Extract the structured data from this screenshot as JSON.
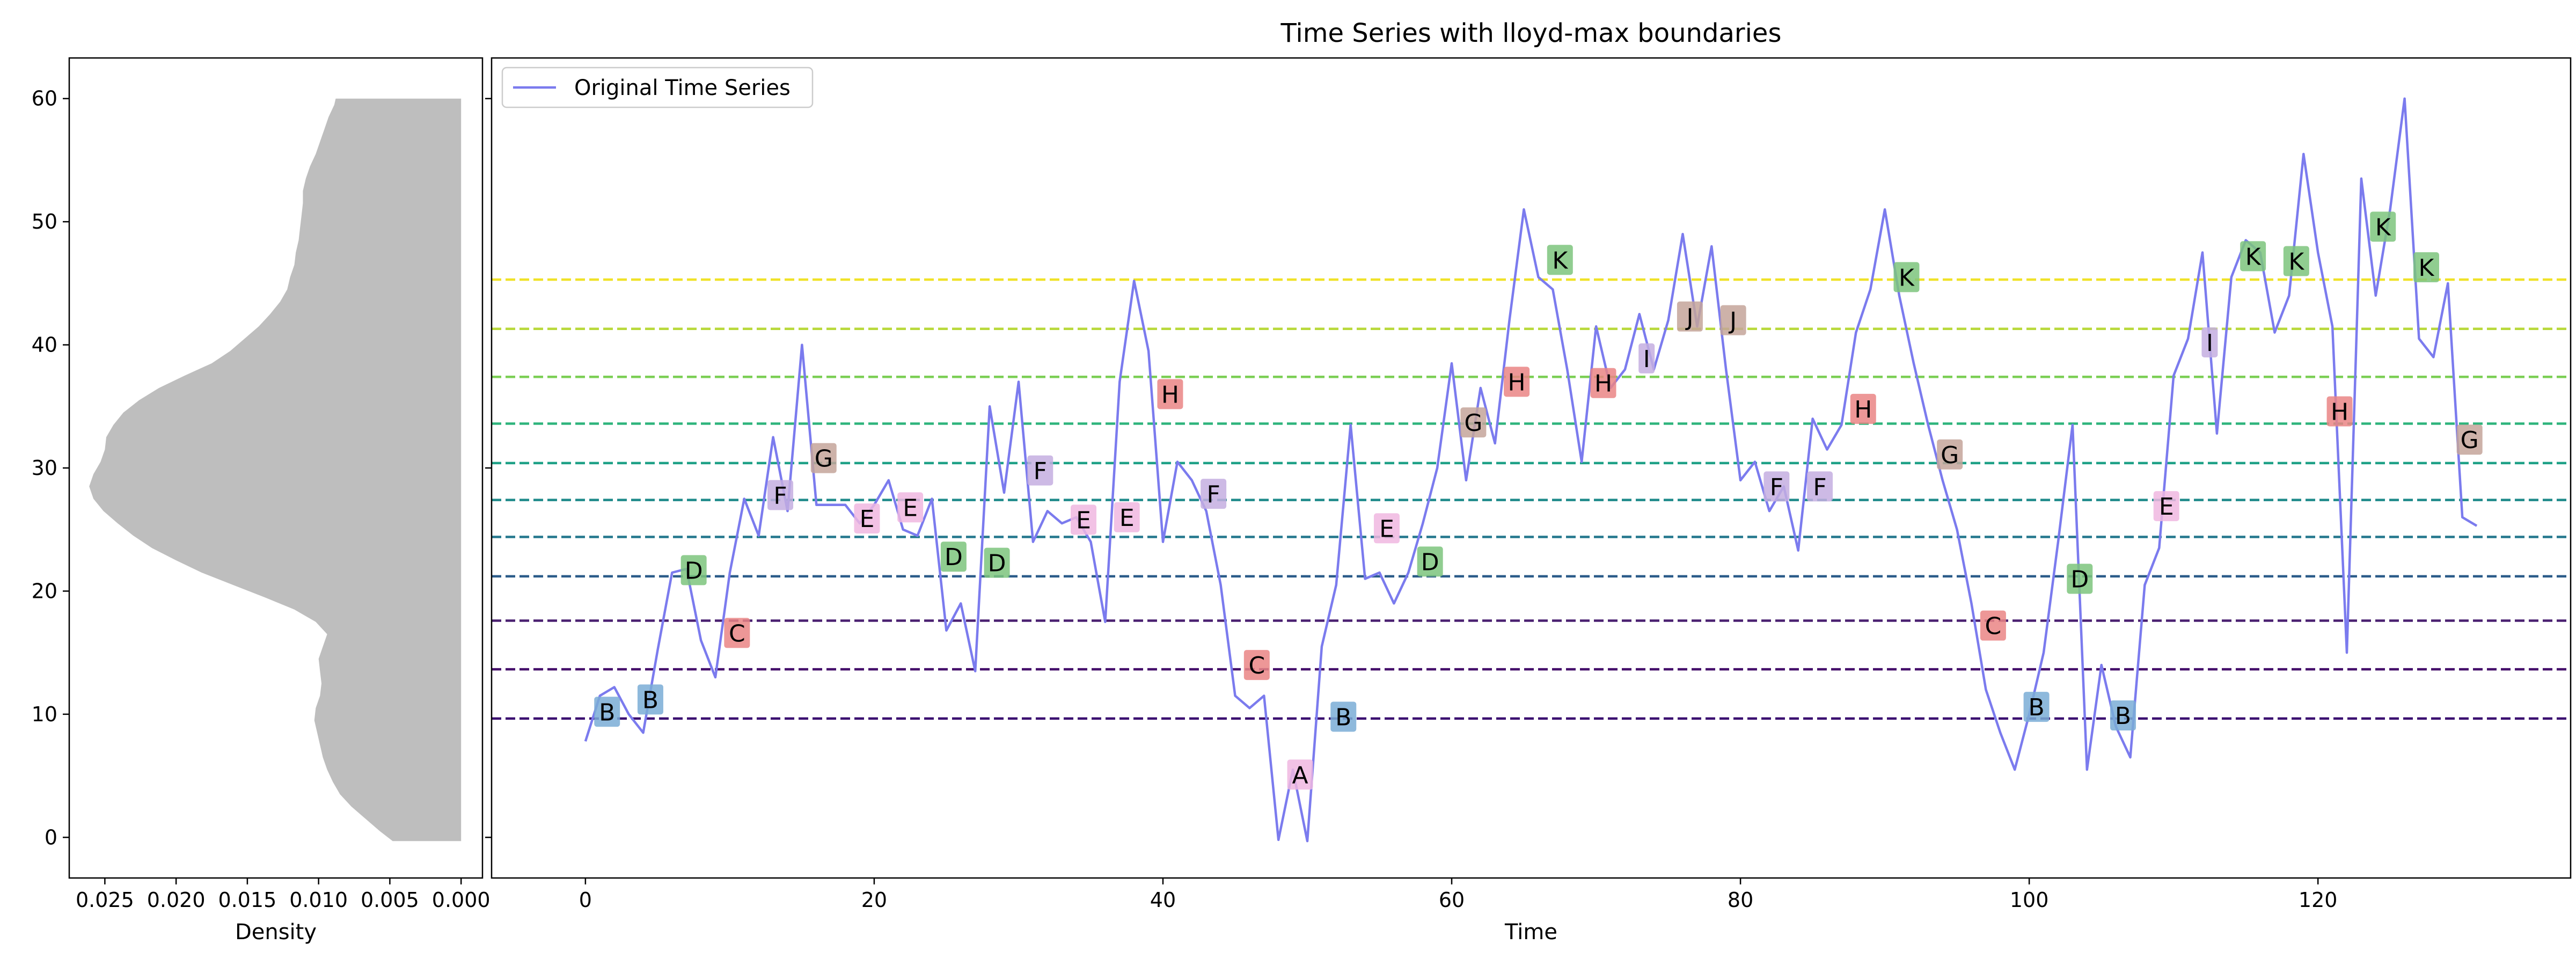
{
  "chart_data": [
    {
      "type": "area",
      "xlabel": "Density",
      "x_ticks": [
        "0.025",
        "0.020",
        "0.015",
        "0.010",
        "0.005",
        "0.000"
      ],
      "x_tick_values": [
        0.025,
        0.02,
        0.015,
        0.01,
        0.005,
        0.0
      ],
      "xlim": [
        0.0275,
        -0.0015
      ],
      "x_inverted": true,
      "y_ticks": [
        "0",
        "10",
        "20",
        "30",
        "40",
        "50",
        "60"
      ],
      "y_tick_values": [
        0,
        10,
        20,
        30,
        40,
        50,
        60
      ],
      "ylim": [
        -3.3,
        63.3
      ],
      "fill_color": "#bebebe",
      "density_profile": {
        "y": [
          -0.3,
          0.5,
          1.5,
          2.5,
          3.5,
          4.5,
          5.5,
          6.5,
          7.5,
          8.5,
          9.5,
          10.5,
          11.5,
          12.5,
          13.5,
          14.5,
          15.5,
          16.5,
          17.5,
          18.5,
          19.5,
          20.5,
          21.5,
          22.5,
          23.5,
          24.5,
          25.5,
          26.5,
          27.5,
          28.5,
          29.5,
          30.5,
          31.5,
          32.5,
          33.5,
          34.5,
          35.5,
          36.5,
          37.5,
          38.5,
          39.5,
          40.5,
          41.5,
          42.5,
          43.5,
          44.5,
          45.5,
          46.5,
          47.5,
          48.5,
          49.5,
          50.5,
          51.5,
          52.5,
          53.5,
          54.5,
          55.5,
          56.5,
          57.5,
          58.5,
          59.5,
          60.0
        ],
        "density": [
          0.0048,
          0.0057,
          0.0067,
          0.0077,
          0.0085,
          0.009,
          0.0094,
          0.0097,
          0.0099,
          0.0101,
          0.0103,
          0.0102,
          0.0099,
          0.0098,
          0.0099,
          0.01,
          0.0097,
          0.0094,
          0.0102,
          0.0117,
          0.0138,
          0.016,
          0.0182,
          0.02,
          0.0217,
          0.023,
          0.0241,
          0.0251,
          0.0258,
          0.0261,
          0.0258,
          0.0253,
          0.025,
          0.0249,
          0.0244,
          0.0237,
          0.0226,
          0.0212,
          0.0194,
          0.0175,
          0.0162,
          0.0152,
          0.0142,
          0.0134,
          0.0127,
          0.0122,
          0.012,
          0.0117,
          0.0116,
          0.0114,
          0.0113,
          0.0112,
          0.0111,
          0.0111,
          0.0109,
          0.0106,
          0.0102,
          0.0099,
          0.0096,
          0.0093,
          0.0089,
          0.0088
        ]
      }
    },
    {
      "type": "line",
      "title": "Time Series with lloyd-max boundaries",
      "xlabel": "Time",
      "ylabel": "",
      "x_ticks": [
        "0",
        "20",
        "40",
        "60",
        "80",
        "100",
        "120"
      ],
      "x_tick_values": [
        0,
        20,
        40,
        60,
        80,
        100,
        120
      ],
      "xlim": [
        -6.5,
        137.5
      ],
      "ylim": [
        -3.3,
        63.3
      ],
      "legend": {
        "position": "top-left",
        "entries": [
          "Original Time Series"
        ]
      },
      "series": [
        {
          "name": "Original Time Series",
          "color": "#7b7bee",
          "x": [
            0,
            1,
            2,
            3,
            4,
            5,
            6,
            7,
            8,
            9,
            10,
            11,
            12,
            13,
            14,
            15,
            16,
            17,
            18,
            19,
            20,
            21,
            22,
            23,
            24,
            25,
            26,
            27,
            28,
            29,
            30,
            31,
            32,
            33,
            34,
            35,
            36,
            37,
            38,
            39,
            40,
            41,
            42,
            43,
            44,
            45,
            46,
            47,
            48,
            49,
            50,
            51,
            52,
            53,
            54,
            55,
            56,
            57,
            58,
            59,
            60,
            61,
            62,
            63,
            64,
            65,
            66,
            67,
            68,
            69,
            70,
            71,
            72,
            73,
            74,
            75,
            76,
            77,
            78,
            79,
            80,
            81,
            82,
            83,
            84,
            85,
            86,
            87,
            88,
            89,
            90,
            91,
            92,
            93,
            94,
            95,
            96,
            97,
            98,
            99,
            100,
            101,
            102,
            103,
            104,
            105,
            106,
            107,
            108,
            109,
            110,
            111,
            112,
            113,
            114,
            115,
            116,
            117,
            118,
            119,
            120,
            121,
            122,
            123,
            124,
            125,
            126,
            127,
            128,
            129,
            130,
            131
          ],
          "y": [
            7.8,
            11.5,
            12.2,
            10.0,
            8.5,
            15.2,
            21.5,
            21.8,
            16.0,
            13.0,
            21.5,
            27.5,
            24.5,
            32.5,
            26.5,
            40.0,
            27.0,
            27.0,
            27.0,
            25.5,
            27.0,
            29.0,
            25.0,
            24.5,
            27.5,
            16.8,
            19.0,
            13.5,
            35.0,
            28.0,
            37.0,
            24.0,
            26.5,
            25.5,
            26.0,
            24.0,
            17.5,
            37.0,
            45.2,
            39.5,
            24.0,
            30.5,
            29.0,
            26.5,
            20.5,
            11.5,
            10.5,
            11.5,
            -0.2,
            5.5,
            -0.3,
            15.5,
            20.5,
            33.5,
            21.0,
            21.5,
            19.0,
            21.5,
            25.5,
            30.0,
            38.5,
            29.0,
            36.5,
            32.0,
            42.0,
            51.0,
            45.5,
            44.5,
            38.0,
            30.5,
            41.5,
            36.5,
            38.0,
            42.5,
            38.0,
            42.0,
            49.0,
            41.5,
            48.0,
            38.0,
            29.0,
            30.5,
            26.5,
            28.5,
            23.3,
            34.0,
            31.5,
            33.5,
            41.0,
            44.5,
            51.0,
            44.0,
            38.5,
            33.5,
            29.0,
            25.0,
            19.0,
            12.0,
            8.5,
            5.5,
            10.0,
            15.0,
            24.0,
            33.5,
            5.5,
            14.0,
            9.0,
            6.5,
            20.5,
            23.5,
            37.5,
            40.5,
            47.5,
            32.8,
            45.5,
            48.5,
            47.5,
            41.0,
            44.0,
            55.5,
            47.5,
            41.5,
            15.0,
            53.5,
            44.0,
            51.0,
            60.0,
            40.5,
            39.0,
            45.0,
            26.0,
            25.3
          ]
        }
      ],
      "boundaries": [
        {
          "y": 9.65,
          "color": "#3b0f70"
        },
        {
          "y": 13.65,
          "color": "#45106b"
        },
        {
          "y": 17.6,
          "color": "#4a2070"
        },
        {
          "y": 21.2,
          "color": "#2c5c8a"
        },
        {
          "y": 24.4,
          "color": "#25788e"
        },
        {
          "y": 27.4,
          "color": "#1f8a8a"
        },
        {
          "y": 30.4,
          "color": "#1fa187"
        },
        {
          "y": 33.6,
          "color": "#2fb47c"
        },
        {
          "y": 37.4,
          "color": "#7ccf55"
        },
        {
          "y": 41.3,
          "color": "#b8d93a"
        },
        {
          "y": 45.3,
          "color": "#f0e228"
        }
      ],
      "annotations": [
        {
          "x": 1.5,
          "y": 10.2,
          "label": "B",
          "color": "#7aadd6"
        },
        {
          "x": 4.5,
          "y": 11.2,
          "label": "B",
          "color": "#7aadd6"
        },
        {
          "x": 7.5,
          "y": 21.7,
          "label": "D",
          "color": "#7cc47c"
        },
        {
          "x": 10.5,
          "y": 16.6,
          "label": "C",
          "color": "#ea8585"
        },
        {
          "x": 13.5,
          "y": 27.8,
          "label": "F",
          "color": "#c4aee0"
        },
        {
          "x": 16.5,
          "y": 30.8,
          "label": "G",
          "color": "#c4a49a"
        },
        {
          "x": 19.5,
          "y": 25.9,
          "label": "E",
          "color": "#f0b7e1"
        },
        {
          "x": 22.5,
          "y": 26.8,
          "label": "E",
          "color": "#f0b7e1"
        },
        {
          "x": 25.5,
          "y": 22.8,
          "label": "D",
          "color": "#7cc47c"
        },
        {
          "x": 28.5,
          "y": 22.3,
          "label": "D",
          "color": "#7cc47c"
        },
        {
          "x": 31.5,
          "y": 29.8,
          "label": "F",
          "color": "#c4aee0"
        },
        {
          "x": 34.5,
          "y": 25.8,
          "label": "E",
          "color": "#f0b7e1"
        },
        {
          "x": 37.5,
          "y": 26.0,
          "label": "E",
          "color": "#f0b7e1"
        },
        {
          "x": 40.5,
          "y": 36.0,
          "label": "H",
          "color": "#ea8585"
        },
        {
          "x": 43.5,
          "y": 27.9,
          "label": "F",
          "color": "#c4aee0"
        },
        {
          "x": 46.5,
          "y": 14.0,
          "label": "C",
          "color": "#ea8585"
        },
        {
          "x": 49.5,
          "y": 5.1,
          "label": "A",
          "color": "#f0b7e1"
        },
        {
          "x": 52.5,
          "y": 9.8,
          "label": "B",
          "color": "#7aadd6"
        },
        {
          "x": 55.5,
          "y": 25.1,
          "label": "E",
          "color": "#f0b7e1"
        },
        {
          "x": 58.5,
          "y": 22.4,
          "label": "D",
          "color": "#7cc47c"
        },
        {
          "x": 61.5,
          "y": 33.7,
          "label": "G",
          "color": "#c4a49a"
        },
        {
          "x": 64.5,
          "y": 37.0,
          "label": "H",
          "color": "#ea8585"
        },
        {
          "x": 67.5,
          "y": 46.9,
          "label": "K",
          "color": "#7cc47c"
        },
        {
          "x": 70.5,
          "y": 36.9,
          "label": "H",
          "color": "#ea8585"
        },
        {
          "x": 73.5,
          "y": 38.9,
          "label": "I",
          "color": "#c4aee0"
        },
        {
          "x": 76.5,
          "y": 42.3,
          "label": "J",
          "color": "#c4a49a"
        },
        {
          "x": 79.5,
          "y": 42.0,
          "label": "J",
          "color": "#c4a49a"
        },
        {
          "x": 82.5,
          "y": 28.5,
          "label": "F",
          "color": "#c4aee0"
        },
        {
          "x": 85.5,
          "y": 28.5,
          "label": "F",
          "color": "#c4aee0"
        },
        {
          "x": 88.5,
          "y": 34.8,
          "label": "H",
          "color": "#ea8585"
        },
        {
          "x": 91.5,
          "y": 45.5,
          "label": "K",
          "color": "#7cc47c"
        },
        {
          "x": 94.5,
          "y": 31.1,
          "label": "G",
          "color": "#c4a49a"
        },
        {
          "x": 97.5,
          "y": 17.2,
          "label": "C",
          "color": "#ea8585"
        },
        {
          "x": 100.5,
          "y": 10.6,
          "label": "B",
          "color": "#7aadd6"
        },
        {
          "x": 103.5,
          "y": 21.0,
          "label": "D",
          "color": "#7cc47c"
        },
        {
          "x": 106.5,
          "y": 9.9,
          "label": "B",
          "color": "#7aadd6"
        },
        {
          "x": 109.5,
          "y": 26.9,
          "label": "E",
          "color": "#f0b7e1"
        },
        {
          "x": 112.5,
          "y": 40.2,
          "label": "I",
          "color": "#c4aee0"
        },
        {
          "x": 115.5,
          "y": 47.2,
          "label": "K",
          "color": "#7cc47c"
        },
        {
          "x": 118.5,
          "y": 46.8,
          "label": "K",
          "color": "#7cc47c"
        },
        {
          "x": 121.5,
          "y": 34.6,
          "label": "H",
          "color": "#ea8585"
        },
        {
          "x": 124.5,
          "y": 49.6,
          "label": "K",
          "color": "#7cc47c"
        },
        {
          "x": 127.5,
          "y": 46.3,
          "label": "K",
          "color": "#7cc47c"
        },
        {
          "x": 130.5,
          "y": 32.3,
          "label": "G",
          "color": "#c4a49a"
        }
      ]
    }
  ]
}
